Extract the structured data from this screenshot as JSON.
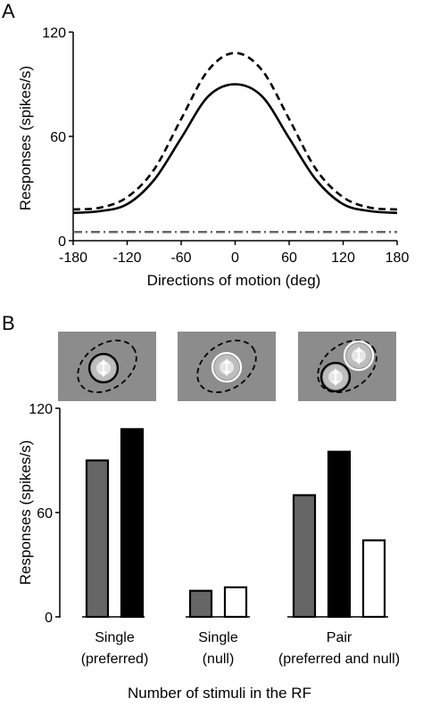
{
  "chart_data": [
    {
      "panel_label": "A",
      "type": "line",
      "xlabel": "Directions of motion (deg)",
      "ylabel": "Responses (spikes/s)",
      "xlim": [
        -180,
        180
      ],
      "ylim": [
        0,
        120
      ],
      "xticks": [
        -180,
        -120,
        -60,
        0,
        60,
        120,
        180
      ],
      "yticks": [
        0,
        60,
        120
      ],
      "x": [
        -180,
        -150,
        -120,
        -90,
        -60,
        -30,
        0,
        30,
        60,
        90,
        120,
        150,
        180
      ],
      "series": [
        {
          "style": "dashed",
          "color": "#000000",
          "values": [
            18,
            19,
            25,
            41,
            70,
            98,
            108,
            98,
            70,
            41,
            25,
            19,
            18
          ]
        },
        {
          "style": "solid",
          "color": "#000000",
          "values": [
            16,
            17,
            21,
            35,
            59,
            83,
            90,
            83,
            59,
            35,
            21,
            17,
            16
          ]
        },
        {
          "style": "dash-dot",
          "color": "#666666",
          "values": [
            5,
            5,
            5,
            5,
            5,
            5,
            5,
            5,
            5,
            5,
            5,
            5,
            5
          ]
        }
      ],
      "grid": false,
      "legend": "none"
    },
    {
      "panel_label": "B",
      "type": "bar",
      "xlabel": "Number of stimuli in the RF",
      "ylabel": "Responses (spikes/s)",
      "ylim": [
        0,
        120
      ],
      "yticks": [
        0,
        60,
        120
      ],
      "groups": [
        {
          "line1": "Single",
          "line2": "(preferred)",
          "stimulus": "preferred",
          "bars": [
            {
              "value": 90,
              "fill": "#666666"
            },
            {
              "value": 108,
              "fill": "#000000"
            }
          ]
        },
        {
          "line1": "Single",
          "line2": "(null)",
          "stimulus": "null",
          "bars": [
            {
              "value": 15,
              "fill": "#666666"
            },
            {
              "value": 17,
              "fill": "#ffffff"
            }
          ]
        },
        {
          "line1": "Pair",
          "line2": "(preferred and null)",
          "stimulus": "pair",
          "bars": [
            {
              "value": 70,
              "fill": "#666666"
            },
            {
              "value": 95,
              "fill": "#000000"
            },
            {
              "value": 44,
              "fill": "#ffffff"
            }
          ]
        }
      ],
      "grid": false
    }
  ],
  "colors": {
    "axis": "#000000",
    "inset_bg": "#8c8c8c",
    "rf_outline": "#000000",
    "null_circle": "#ffffff"
  }
}
